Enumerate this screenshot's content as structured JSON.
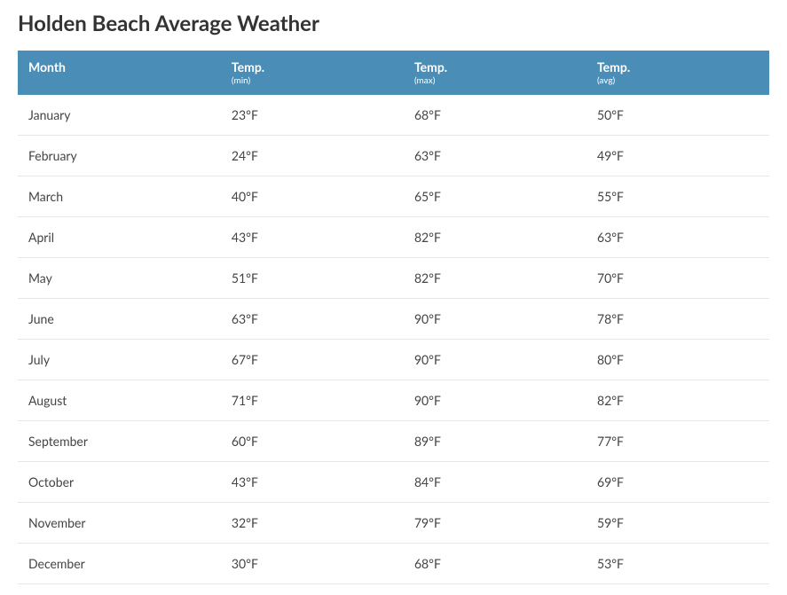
{
  "title": "Holden Beach Average Weather",
  "table": {
    "columns": [
      {
        "label": "Month",
        "sub": ""
      },
      {
        "label": "Temp.",
        "sub": "(min)"
      },
      {
        "label": "Temp.",
        "sub": "(max)"
      },
      {
        "label": "Temp.",
        "sub": "(avg)"
      }
    ],
    "rows": [
      {
        "month": "January",
        "min": "23°F",
        "max": "68°F",
        "avg": "50°F"
      },
      {
        "month": "February",
        "min": "24°F",
        "max": "63°F",
        "avg": "49°F"
      },
      {
        "month": "March",
        "min": "40°F",
        "max": "65°F",
        "avg": "55°F"
      },
      {
        "month": "April",
        "min": "43°F",
        "max": "82°F",
        "avg": "63°F"
      },
      {
        "month": "May",
        "min": "51°F",
        "max": "82°F",
        "avg": "70°F"
      },
      {
        "month": "June",
        "min": "63°F",
        "max": "90°F",
        "avg": "78°F"
      },
      {
        "month": "July",
        "min": "67°F",
        "max": "90°F",
        "avg": "80°F"
      },
      {
        "month": "August",
        "min": "71°F",
        "max": "90°F",
        "avg": "82°F"
      },
      {
        "month": "September",
        "min": "60°F",
        "max": "89°F",
        "avg": "77°F"
      },
      {
        "month": "October",
        "min": "43°F",
        "max": "84°F",
        "avg": "69°F"
      },
      {
        "month": "November",
        "min": "32°F",
        "max": "79°F",
        "avg": "59°F"
      },
      {
        "month": "December",
        "min": "30°F",
        "max": "68°F",
        "avg": "53°F"
      }
    ],
    "header_bg": "#4a8db7",
    "header_text_color": "#ffffff",
    "row_border_color": "#e6e6e6",
    "cell_text_color": "#444444",
    "title_color": "#333333",
    "title_fontsize": 24,
    "header_fontsize": 14,
    "header_sub_fontsize": 10,
    "cell_fontsize": 14
  }
}
